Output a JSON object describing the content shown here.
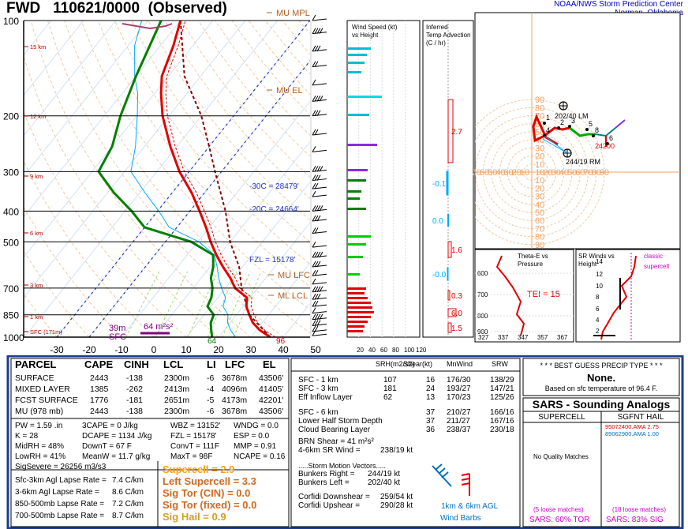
{
  "header": {
    "station": "FWD",
    "time": "110621/0000",
    "obs": "(Observed)",
    "org1": "NOAA/NWS Storm Prediction Center",
    "org2": "Norman, Oklahoma"
  },
  "skewt": {
    "pressure_ticks": [
      "100",
      "200",
      "300",
      "400",
      "500",
      "700",
      "850",
      "1000"
    ],
    "temp_ticks": [
      "-30",
      "-20",
      "-10",
      "0",
      "10",
      "20",
      "30",
      "40",
      "50"
    ],
    "height_labels": [
      "15 km",
      "12 km",
      "9 km",
      "6 km",
      "3 km",
      "1 km",
      "SFC (171m)"
    ],
    "annotations": {
      "mu_mpl": "MU MPL",
      "mu_el": "MU EL",
      "minus30": "-30C = 28479'",
      "minus20": "-20C = 24664'",
      "fzl": "FZL = 15178'",
      "mu_lfc": "MU LFC",
      "ml_lcl": "ML LCL",
      "td_sfc": "64",
      "t_sfc": "96",
      "d39": "39m",
      "sfc": "SFC",
      "m2s2": "64 m²s²"
    },
    "colors": {
      "temp": "#e00000",
      "dewp": "#008000",
      "parcel": "#8b0000",
      "wetbulb": "#00aaff",
      "virtual": "#e00000"
    }
  },
  "chart_data": [
    {
      "type": "line",
      "title": "Skew-T log-P",
      "x_axis": "Temperature (C)",
      "y_axis": "Pressure (mb)",
      "xlim": [
        -30,
        50
      ],
      "ylim": [
        1000,
        100
      ],
      "series": [
        {
          "name": "Temperature",
          "points": [
            [
              1000,
              36
            ],
            [
              950,
              31
            ],
            [
              900,
              27
            ],
            [
              850,
              24
            ],
            [
              800,
              21
            ],
            [
              750,
              19
            ],
            [
              700,
              13
            ],
            [
              650,
              9
            ],
            [
              600,
              4
            ],
            [
              550,
              -1
            ],
            [
              500,
              -6
            ],
            [
              450,
              -11
            ],
            [
              400,
              -17
            ],
            [
              350,
              -24
            ],
            [
              300,
              -33
            ],
            [
              250,
              -42
            ],
            [
              200,
              -52
            ],
            [
              170,
              -58
            ],
            [
              150,
              -62
            ],
            [
              120,
              -66
            ],
            [
              100,
              -70
            ]
          ]
        },
        {
          "name": "Dewpoint",
          "points": [
            [
              1000,
              18
            ],
            [
              950,
              16
            ],
            [
              900,
              14
            ],
            [
              850,
              13
            ],
            [
              800,
              9
            ],
            [
              750,
              8
            ],
            [
              700,
              6
            ],
            [
              650,
              3
            ],
            [
              600,
              1
            ],
            [
              550,
              -2
            ],
            [
              500,
              -12
            ],
            [
              450,
              -30
            ],
            [
              400,
              -38
            ],
            [
              350,
              -48
            ],
            [
              300,
              -58
            ],
            [
              250,
              -60
            ],
            [
              200,
              -65
            ],
            [
              150,
              -70
            ],
            [
              100,
              -76
            ]
          ]
        },
        {
          "name": "Parcel",
          "points": [
            [
              1000,
              36
            ],
            [
              850,
              24
            ],
            [
              700,
              15
            ],
            [
              600,
              9
            ],
            [
              500,
              0
            ],
            [
              400,
              -9
            ],
            [
              300,
              -22
            ],
            [
              250,
              -30
            ],
            [
              200,
              -40
            ],
            [
              150,
              -55
            ],
            [
              100,
              -70
            ]
          ]
        }
      ]
    },
    {
      "type": "bar",
      "title": "Wind Speed (kt) vs Height",
      "axis_ticks": [
        "20",
        "40",
        "60",
        "80",
        "100",
        "120"
      ]
    },
    {
      "type": "bar",
      "title": "Inferred Temp Advection (C / hr)",
      "labels": [
        "2.7",
        "-0.1",
        "0.0",
        "1.6",
        "-0.0",
        "0.3",
        "6.0",
        "1.5"
      ]
    },
    {
      "type": "line",
      "title": "Hodograph",
      "rings": [
        "10",
        "20",
        "30",
        "40",
        "50",
        "60",
        "70",
        "80",
        "90"
      ],
      "annotations": [
        "202/40 LM",
        "244/19 RM",
        "24200"
      ]
    }
  ],
  "theta_panel": {
    "title1": "Theta-E vs",
    "title2": "Pressure",
    "tei": "TEI = 15",
    "p_ticks": [
      "600",
      "700",
      "800",
      "900"
    ],
    "x_ticks": [
      "327",
      "337",
      "347",
      "357",
      "367"
    ]
  },
  "sr_panel": {
    "title1": "SR Winds vs",
    "title2": "Height",
    "legend1": "classic",
    "legend2": "supercell",
    "h_ticks": [
      "14",
      "12",
      "10",
      "8",
      "6",
      "4",
      "2"
    ]
  },
  "parcel_table": {
    "headers": [
      "PARCEL",
      "CAPE",
      "CINH",
      "LCL",
      "LI",
      "LFC",
      "EL"
    ],
    "rows": [
      [
        "SURFACE",
        "2443",
        "-138",
        "2300m",
        "-6",
        "3678m",
        "43506'"
      ],
      [
        "MIXED LAYER",
        "1385",
        "-262",
        "2413m",
        "-4",
        "4096m",
        "41405'"
      ],
      [
        "FCST SURFACE",
        "1776",
        "-181",
        "2651m",
        "-5",
        "4173m",
        "42201'"
      ],
      [
        "MU   (978 mb)",
        "2443",
        "-138",
        "2300m",
        "-6",
        "3678m",
        "43506'"
      ]
    ]
  },
  "indices": {
    "c1": [
      "PW = 1.59 .in",
      "K = 28",
      "MidRH = 48%",
      "LowRH = 41%",
      "SigSevere = 26256 m3/s3"
    ],
    "c2": [
      "3CAPE = 0 J/kg",
      "DCAPE = 1134 J/kg",
      "DownT = 67 F",
      "MeanW = 11.7 g/kg"
    ],
    "c3": [
      "WBZ = 13152'",
      "FZL = 15178'",
      "ConvT = 111F",
      "MaxT = 98F"
    ],
    "c4": [
      "WNDG = 0.0",
      "ESP = 0.0",
      "MMP = 0.91",
      "NCAPE = 0.16"
    ]
  },
  "lapse": [
    [
      "Sfc-3km Agl Lapse Rate =",
      "7.4 C/km"
    ],
    [
      "3-6km Agl Lapse Rate =",
      "8.6 C/km"
    ],
    [
      "850-500mb Lapse Rate =",
      "7.2 C/km"
    ],
    [
      "700-500mb Lapse Rate =",
      "8.7 C/km"
    ]
  ],
  "composites": [
    {
      "text": "Supercell = 2.9",
      "color": "#f5a020"
    },
    {
      "text": "Left Supercell = 3.3",
      "color": "#d2691e"
    },
    {
      "text": "Sig Tor (CIN) = 0.0",
      "color": "#d2691e"
    },
    {
      "text": "Sig Tor (fixed) = 0.0",
      "color": "#d2691e"
    },
    {
      "text": "Sig Hail = 0.9",
      "color": "#d2a020"
    }
  ],
  "kinematics": {
    "headers": [
      "SRH(m2/s2)",
      "Shear(kt)",
      "MnWind",
      "SRW"
    ],
    "rows1": [
      [
        "SFC - 1 km",
        "107",
        "16",
        "176/30",
        "138/29"
      ],
      [
        "SFC - 3 km",
        "181",
        "24",
        "193/27",
        "147/21"
      ],
      [
        "Eff Inflow Layer",
        "62",
        "13",
        "170/23",
        "125/26"
      ]
    ],
    "rows2": [
      [
        "SFC - 6 km",
        "",
        "37",
        "210/27",
        "166/16"
      ],
      [
        "Lower Half Storm Depth",
        "",
        "37",
        "211/27",
        "167/16"
      ],
      [
        "Cloud Bearing Layer",
        "",
        "36",
        "238/37",
        "230/18"
      ]
    ],
    "brn": "BRN Shear =  41 m²s²",
    "srwind_label": "4-6km SR Wind =",
    "srwind_val": "238/19 kt",
    "smv_title": ".....Storm Motion Vectors.....",
    "br_label": "Bunkers Right =",
    "br_val": "244/19 kt",
    "bl_label": "Bunkers Left =",
    "bl_val": "202/40 kt",
    "cd_label": "Corfidi Downshear =",
    "cd_val": "259/54 kt",
    "cu_label": "Corfidi Upshear =",
    "cu_val": "290/28 kt",
    "barb_label1": "1km & 6km AGL",
    "barb_label2": "Wind Barbs"
  },
  "precip": {
    "title": "* * * BEST GUESS PRECIP TYPE * * *",
    "value": "None.",
    "based": "Based on sfc temperature of 96.4 F."
  },
  "sars": {
    "title": "SARS - Sounding Analogs",
    "col1": "SUPERCELL",
    "col2": "SGFNT HAIL",
    "hail1": "95072400.AMA  2.75",
    "hail2": "89062900.AMA  1.00",
    "nomatch": "No Quality Matches",
    "loose1": "(5 loose matches)",
    "loose2": "(18 loose matches)",
    "tor": "SARS:  60% TOR",
    "sig": "SARS:  83% SIG",
    "c_red": "#e00000",
    "c_blue": "#0070c0",
    "c_mag": "#cc00cc"
  }
}
